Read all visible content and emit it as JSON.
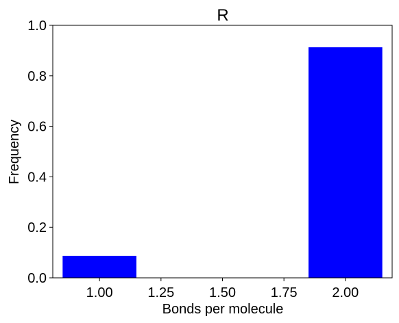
{
  "chart_data": {
    "type": "bar",
    "title": "R",
    "xlabel": "Bonds per molecule",
    "ylabel": "Frequency",
    "x": [
      1.0,
      2.0
    ],
    "values": [
      0.087,
      0.913
    ],
    "bar_width": 0.3,
    "xlim": [
      0.81,
      2.19
    ],
    "ylim": [
      0.0,
      1.0
    ],
    "xticks": [
      1.0,
      1.25,
      1.5,
      1.75,
      2.0
    ],
    "xtick_labels": [
      "1.00",
      "1.25",
      "1.50",
      "1.75",
      "2.00"
    ],
    "yticks": [
      0.0,
      0.2,
      0.4,
      0.6,
      0.8,
      1.0
    ],
    "ytick_labels": [
      "0.0",
      "0.2",
      "0.4",
      "0.6",
      "0.8",
      "1.0"
    ],
    "bar_color": "#0000ff",
    "grid": false,
    "legend": "none"
  }
}
